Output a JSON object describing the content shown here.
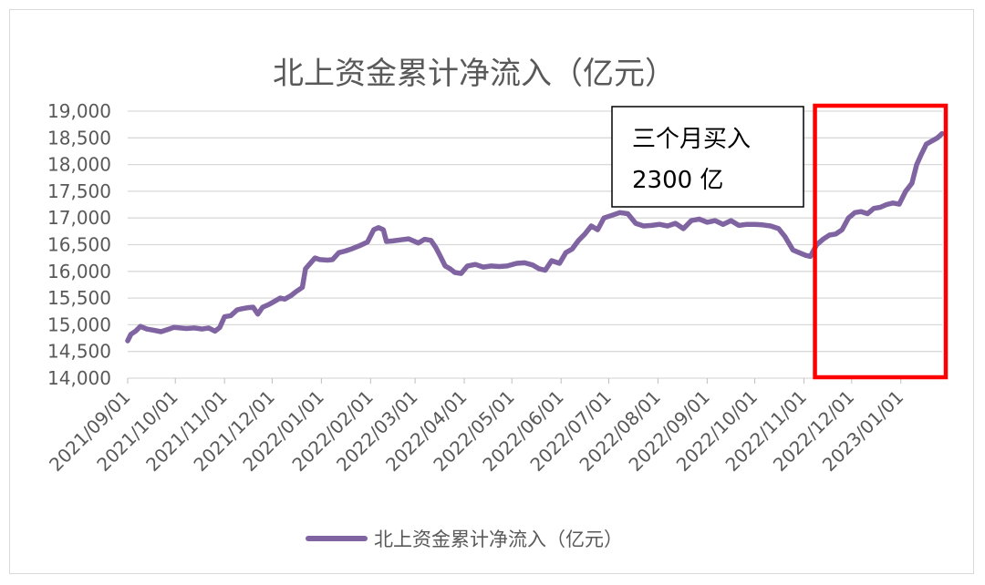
{
  "chart_data": {
    "type": "line",
    "title": "北上资金累计净流入（亿元）",
    "ylim": [
      14000,
      19000
    ],
    "y_ticks": [
      "14,000",
      "14,500",
      "15,000",
      "15,500",
      "16,000",
      "16,500",
      "17,000",
      "17,500",
      "18,000",
      "18,500",
      "19,000"
    ],
    "x_ticks": [
      "2021/09/01",
      "2021/10/01",
      "2021/11/01",
      "2021/12/01",
      "2022/01/01",
      "2022/02/01",
      "2022/03/01",
      "2022/04/01",
      "2022/05/01",
      "2022/06/01",
      "2022/07/01",
      "2022/08/01",
      "2022/09/01",
      "2022/10/01",
      "2022/11/01",
      "2022/12/01",
      "2023/01/01"
    ],
    "grid": true,
    "legend_position": "bottom",
    "series": [
      {
        "name": "北上资金累计净流入（亿元）",
        "color": "#8064A2",
        "points": [
          [
            "2021-09-01",
            14700
          ],
          [
            "2021-09-03",
            14820
          ],
          [
            "2021-09-06",
            14880
          ],
          [
            "2021-09-09",
            14970
          ],
          [
            "2021-09-13",
            14920
          ],
          [
            "2021-09-17",
            14900
          ],
          [
            "2021-09-22",
            14870
          ],
          [
            "2021-09-27",
            14920
          ],
          [
            "2021-09-30",
            14950
          ],
          [
            "2021-10-08",
            14930
          ],
          [
            "2021-10-13",
            14940
          ],
          [
            "2021-10-18",
            14920
          ],
          [
            "2021-10-22",
            14940
          ],
          [
            "2021-10-26",
            14880
          ],
          [
            "2021-10-29",
            14950
          ],
          [
            "2021-11-01",
            15150
          ],
          [
            "2021-11-05",
            15170
          ],
          [
            "2021-11-09",
            15280
          ],
          [
            "2021-11-12",
            15300
          ],
          [
            "2021-11-16",
            15320
          ],
          [
            "2021-11-19",
            15330
          ],
          [
            "2021-11-22",
            15200
          ],
          [
            "2021-11-25",
            15330
          ],
          [
            "2021-11-29",
            15380
          ],
          [
            "2021-12-02",
            15430
          ],
          [
            "2021-12-06",
            15500
          ],
          [
            "2021-12-09",
            15480
          ],
          [
            "2021-12-13",
            15550
          ],
          [
            "2021-12-16",
            15620
          ],
          [
            "2021-12-20",
            15700
          ],
          [
            "2021-12-22",
            16050
          ],
          [
            "2021-12-25",
            16150
          ],
          [
            "2021-12-28",
            16250
          ],
          [
            "2021-12-31",
            16220
          ],
          [
            "2022-01-05",
            16210
          ],
          [
            "2022-01-08",
            16220
          ],
          [
            "2022-01-12",
            16350
          ],
          [
            "2022-01-16",
            16380
          ],
          [
            "2022-01-20",
            16420
          ],
          [
            "2022-01-25",
            16480
          ],
          [
            "2022-01-30",
            16550
          ],
          [
            "2022-02-03",
            16780
          ],
          [
            "2022-02-06",
            16820
          ],
          [
            "2022-02-09",
            16780
          ],
          [
            "2022-02-11",
            16560
          ],
          [
            "2022-02-15",
            16570
          ],
          [
            "2022-02-20",
            16590
          ],
          [
            "2022-02-25",
            16610
          ],
          [
            "2022-02-28",
            16570
          ],
          [
            "2022-03-03",
            16530
          ],
          [
            "2022-03-07",
            16600
          ],
          [
            "2022-03-11",
            16580
          ],
          [
            "2022-03-14",
            16450
          ],
          [
            "2022-03-17",
            16280
          ],
          [
            "2022-03-20",
            16100
          ],
          [
            "2022-03-23",
            16050
          ],
          [
            "2022-03-26",
            15980
          ],
          [
            "2022-03-30",
            15960
          ],
          [
            "2022-04-03",
            16100
          ],
          [
            "2022-04-08",
            16130
          ],
          [
            "2022-04-13",
            16080
          ],
          [
            "2022-04-18",
            16100
          ],
          [
            "2022-04-23",
            16090
          ],
          [
            "2022-04-28",
            16100
          ],
          [
            "2022-05-04",
            16150
          ],
          [
            "2022-05-09",
            16160
          ],
          [
            "2022-05-14",
            16120
          ],
          [
            "2022-05-18",
            16050
          ],
          [
            "2022-05-22",
            16020
          ],
          [
            "2022-05-26",
            16200
          ],
          [
            "2022-05-31",
            16150
          ],
          [
            "2022-06-04",
            16350
          ],
          [
            "2022-06-08",
            16420
          ],
          [
            "2022-06-12",
            16580
          ],
          [
            "2022-06-16",
            16700
          ],
          [
            "2022-06-20",
            16850
          ],
          [
            "2022-06-24",
            16780
          ],
          [
            "2022-06-28",
            17000
          ],
          [
            "2022-07-03",
            17050
          ],
          [
            "2022-07-08",
            17100
          ],
          [
            "2022-07-13",
            17080
          ],
          [
            "2022-07-18",
            16900
          ],
          [
            "2022-07-23",
            16850
          ],
          [
            "2022-07-28",
            16860
          ],
          [
            "2022-08-02",
            16880
          ],
          [
            "2022-08-07",
            16850
          ],
          [
            "2022-08-12",
            16900
          ],
          [
            "2022-08-17",
            16800
          ],
          [
            "2022-08-22",
            16950
          ],
          [
            "2022-08-27",
            16980
          ],
          [
            "2022-09-01",
            16920
          ],
          [
            "2022-09-06",
            16950
          ],
          [
            "2022-09-11",
            16880
          ],
          [
            "2022-09-16",
            16950
          ],
          [
            "2022-09-21",
            16860
          ],
          [
            "2022-09-26",
            16880
          ],
          [
            "2022-10-01",
            16880
          ],
          [
            "2022-10-06",
            16870
          ],
          [
            "2022-10-11",
            16850
          ],
          [
            "2022-10-16",
            16800
          ],
          [
            "2022-10-20",
            16650
          ],
          [
            "2022-10-25",
            16400
          ],
          [
            "2022-10-29",
            16350
          ],
          [
            "2022-11-02",
            16300
          ],
          [
            "2022-11-05",
            16280
          ],
          [
            "2022-11-09",
            16500
          ],
          [
            "2022-11-13",
            16600
          ],
          [
            "2022-11-17",
            16680
          ],
          [
            "2022-11-21",
            16700
          ],
          [
            "2022-11-25",
            16780
          ],
          [
            "2022-11-29",
            17000
          ],
          [
            "2022-12-03",
            17100
          ],
          [
            "2022-12-07",
            17120
          ],
          [
            "2022-12-11",
            17080
          ],
          [
            "2022-12-15",
            17180
          ],
          [
            "2022-12-19",
            17200
          ],
          [
            "2022-12-23",
            17250
          ],
          [
            "2022-12-27",
            17280
          ],
          [
            "2022-12-31",
            17260
          ],
          [
            "2023-01-04",
            17500
          ],
          [
            "2023-01-08",
            17650
          ],
          [
            "2023-01-11",
            18000
          ],
          [
            "2023-01-14",
            18200
          ],
          [
            "2023-01-17",
            18380
          ],
          [
            "2023-01-21",
            18450
          ],
          [
            "2023-01-24",
            18500
          ],
          [
            "2023-01-27",
            18580
          ]
        ]
      }
    ],
    "annotation": {
      "lines": [
        "三个月买入",
        "2300 亿"
      ],
      "highlight_range": [
        "2022-11-01",
        "2023-01-27"
      ],
      "highlight_color": "#FF0000"
    }
  }
}
